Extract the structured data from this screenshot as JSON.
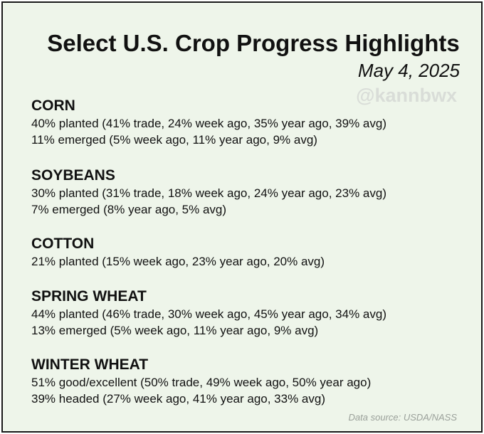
{
  "title": "Select U.S. Crop Progress Highlights",
  "date": "May 4, 2025",
  "watermark": "@kannbwx",
  "sections": [
    {
      "name": "CORN",
      "lines": [
        "40% planted (41% trade, 24% week ago, 35% year ago, 39% avg)",
        "11% emerged (5% week ago, 11% year ago, 9% avg)"
      ]
    },
    {
      "name": "SOYBEANS",
      "lines": [
        "30% planted (31% trade, 18% week ago, 24% year ago, 23% avg)",
        "7% emerged (8% year ago, 5% avg)"
      ]
    },
    {
      "name": "COTTON",
      "lines": [
        "21% planted (15% week ago, 23% year ago, 20% avg)"
      ]
    },
    {
      "name": "SPRING WHEAT",
      "lines": [
        "44% planted (46% trade, 30% week ago, 45% year ago, 34% avg)",
        "13% emerged (5% week ago, 11% year ago, 9% avg)"
      ]
    },
    {
      "name": "WINTER WHEAT",
      "lines": [
        "51% good/excellent (50% trade, 49% week ago, 50% year ago)",
        "39% headed (27% week ago, 41% year ago, 33% avg)"
      ]
    }
  ],
  "source": "Data source: USDA/NASS",
  "colors": {
    "background": "#eef5ea",
    "border": "#1a1a1a",
    "text": "#111111",
    "watermark": "#d9ddd8",
    "source": "#9aa09a"
  }
}
